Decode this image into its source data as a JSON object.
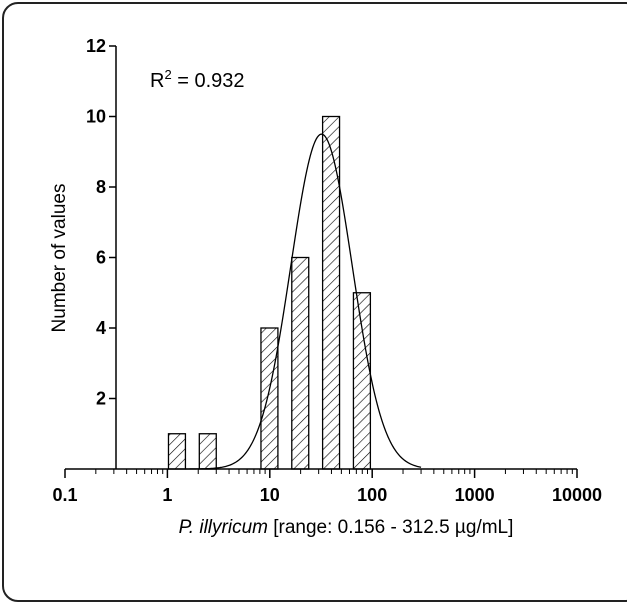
{
  "chart_data": {
    "type": "bar",
    "xscale": "log",
    "xlim": [
      0.1,
      10000
    ],
    "ylim": [
      0,
      12
    ],
    "xticks": [
      "0.1",
      "1",
      "10",
      "100",
      "1000",
      "10000"
    ],
    "yticks": [
      "2",
      "4",
      "6",
      "8",
      "10",
      "12"
    ],
    "xlabel_italic": "P. illyricum",
    "xlabel_rest": " [range: 0.156 - 312.5 µg/mL]",
    "ylabel": "Number of values",
    "annotation": {
      "prefix": "R",
      "superscript": "2",
      "suffix": " = 0.932"
    },
    "bars": [
      {
        "x": 1.25,
        "value": 1
      },
      {
        "x": 2.5,
        "value": 1
      },
      {
        "x": 10,
        "value": 4
      },
      {
        "x": 20,
        "value": 6
      },
      {
        "x": 40,
        "value": 10
      },
      {
        "x": 80,
        "value": 5
      }
    ],
    "fit": {
      "type": "gaussian-log",
      "peak": 9.5,
      "center": 32,
      "sigma_log10": 0.3,
      "range": [
        1.5,
        300
      ]
    },
    "bar_style": "hatched",
    "grid": false
  }
}
